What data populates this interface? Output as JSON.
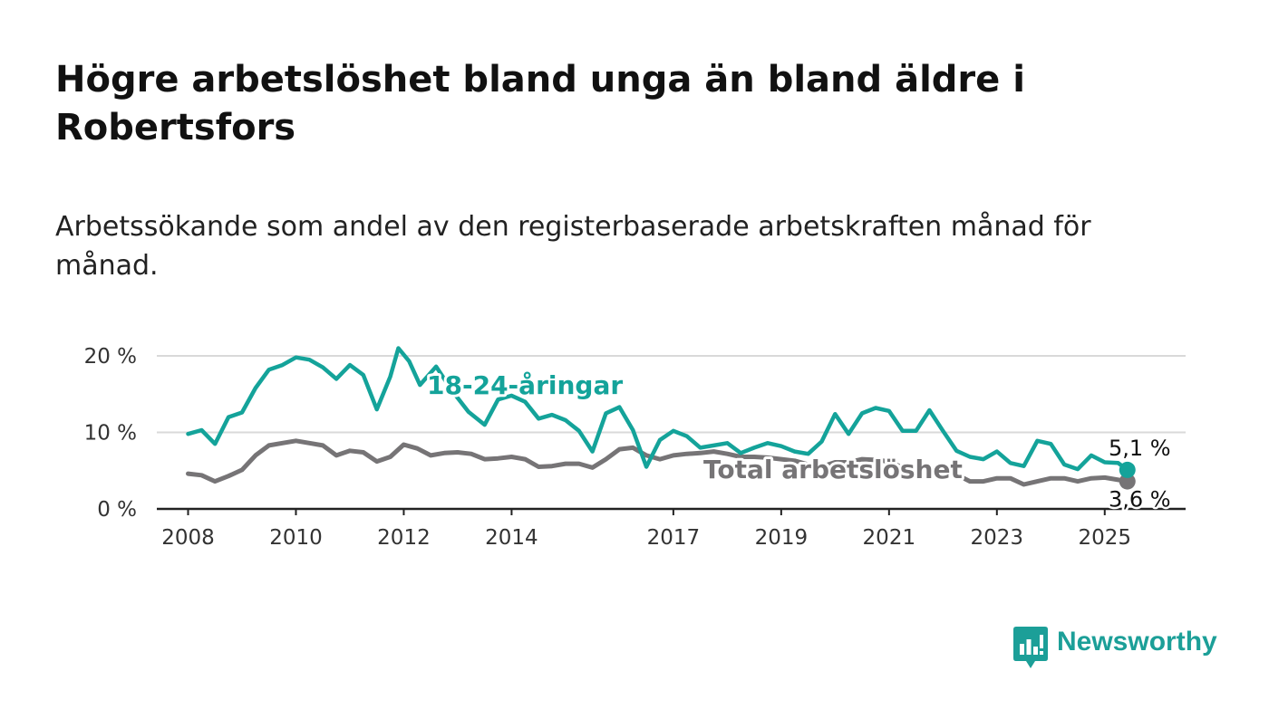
{
  "title": "Högre arbetslöshet bland unga än bland äldre i Robertsfors",
  "subtitle": "Arbetssökande som andel av den registerbaserade arbetskraften månad för månad.",
  "brand": {
    "name": "Newsworthy",
    "color": "#1c9f98"
  },
  "colors": {
    "youth": "#14a39a",
    "total": "#767476"
  },
  "chart_data": {
    "type": "line",
    "title": "Högre arbetslöshet bland unga än bland äldre i Robertsfors",
    "subtitle": "Arbetssökande som andel av den registerbaserade arbetskraften månad för månad.",
    "xlabel": "",
    "ylabel": "",
    "x_range": [
      2007.42,
      2026.5
    ],
    "ylim": [
      0,
      22
    ],
    "grid": true,
    "legend": "direct labels on lines",
    "yticks": [
      {
        "value": 0,
        "label": "0 %"
      },
      {
        "value": 10,
        "label": "10 %"
      },
      {
        "value": 20,
        "label": "20 %"
      }
    ],
    "xticks": [
      {
        "value": 2008,
        "label": "2008"
      },
      {
        "value": 2010,
        "label": "2010"
      },
      {
        "value": 2012,
        "label": "2012"
      },
      {
        "value": 2014,
        "label": "2014"
      },
      {
        "value": 2017,
        "label": "2017"
      },
      {
        "value": 2019,
        "label": "2019"
      },
      {
        "value": 2021,
        "label": "2021"
      },
      {
        "value": 2023,
        "label": "2023"
      },
      {
        "value": 2025,
        "label": "2025"
      }
    ],
    "series": [
      {
        "name": "18-24-åringar",
        "color": "#14a39a",
        "end_label": "5,1 %",
        "points": [
          [
            2008.0,
            9.8
          ],
          [
            2008.25,
            10.3
          ],
          [
            2008.5,
            8.5
          ],
          [
            2008.75,
            12.0
          ],
          [
            2009.0,
            12.6
          ],
          [
            2009.25,
            15.8
          ],
          [
            2009.5,
            18.2
          ],
          [
            2009.75,
            18.8
          ],
          [
            2010.0,
            19.8
          ],
          [
            2010.25,
            19.5
          ],
          [
            2010.5,
            18.5
          ],
          [
            2010.75,
            17.0
          ],
          [
            2011.0,
            18.8
          ],
          [
            2011.25,
            17.5
          ],
          [
            2011.5,
            13.0
          ],
          [
            2011.75,
            17.3
          ],
          [
            2011.9,
            21.0
          ],
          [
            2012.1,
            19.3
          ],
          [
            2012.3,
            16.2
          ],
          [
            2012.6,
            18.6
          ],
          [
            2012.9,
            15.4
          ],
          [
            2013.2,
            12.7
          ],
          [
            2013.5,
            11.0
          ],
          [
            2013.75,
            14.3
          ],
          [
            2014.0,
            14.8
          ],
          [
            2014.25,
            14.0
          ],
          [
            2014.5,
            11.8
          ],
          [
            2014.75,
            12.3
          ],
          [
            2015.0,
            11.6
          ],
          [
            2015.25,
            10.2
          ],
          [
            2015.5,
            7.5
          ],
          [
            2015.75,
            12.5
          ],
          [
            2016.0,
            13.3
          ],
          [
            2016.25,
            10.3
          ],
          [
            2016.5,
            5.5
          ],
          [
            2016.75,
            9.0
          ],
          [
            2017.0,
            10.2
          ],
          [
            2017.25,
            9.5
          ],
          [
            2017.5,
            8.0
          ],
          [
            2017.75,
            8.3
          ],
          [
            2018.0,
            8.6
          ],
          [
            2018.25,
            7.3
          ],
          [
            2018.5,
            8.0
          ],
          [
            2018.75,
            8.6
          ],
          [
            2019.0,
            8.2
          ],
          [
            2019.25,
            7.5
          ],
          [
            2019.5,
            7.2
          ],
          [
            2019.75,
            8.8
          ],
          [
            2020.0,
            12.4
          ],
          [
            2020.25,
            9.8
          ],
          [
            2020.5,
            12.5
          ],
          [
            2020.75,
            13.2
          ],
          [
            2021.0,
            12.8
          ],
          [
            2021.25,
            10.2
          ],
          [
            2021.5,
            10.2
          ],
          [
            2021.75,
            12.9
          ],
          [
            2022.0,
            10.2
          ],
          [
            2022.25,
            7.6
          ],
          [
            2022.5,
            6.8
          ],
          [
            2022.75,
            6.5
          ],
          [
            2023.0,
            7.5
          ],
          [
            2023.25,
            6.0
          ],
          [
            2023.5,
            5.6
          ],
          [
            2023.75,
            8.9
          ],
          [
            2024.0,
            8.5
          ],
          [
            2024.25,
            5.8
          ],
          [
            2024.5,
            5.2
          ],
          [
            2024.75,
            7.0
          ],
          [
            2025.0,
            6.1
          ],
          [
            2025.25,
            6.0
          ],
          [
            2025.42,
            5.1
          ]
        ]
      },
      {
        "name": "Total arbetslöshet",
        "color": "#767476",
        "end_label": "3,6 %",
        "points": [
          [
            2008.0,
            4.6
          ],
          [
            2008.25,
            4.4
          ],
          [
            2008.5,
            3.6
          ],
          [
            2008.75,
            4.3
          ],
          [
            2009.0,
            5.1
          ],
          [
            2009.25,
            7.0
          ],
          [
            2009.5,
            8.3
          ],
          [
            2009.75,
            8.6
          ],
          [
            2010.0,
            8.9
          ],
          [
            2010.25,
            8.6
          ],
          [
            2010.5,
            8.3
          ],
          [
            2010.75,
            7.0
          ],
          [
            2011.0,
            7.6
          ],
          [
            2011.25,
            7.4
          ],
          [
            2011.5,
            6.2
          ],
          [
            2011.75,
            6.8
          ],
          [
            2012.0,
            8.4
          ],
          [
            2012.25,
            7.9
          ],
          [
            2012.5,
            7.0
          ],
          [
            2012.75,
            7.3
          ],
          [
            2013.0,
            7.4
          ],
          [
            2013.25,
            7.2
          ],
          [
            2013.5,
            6.5
          ],
          [
            2013.75,
            6.6
          ],
          [
            2014.0,
            6.8
          ],
          [
            2014.25,
            6.5
          ],
          [
            2014.5,
            5.5
          ],
          [
            2014.75,
            5.6
          ],
          [
            2015.0,
            5.9
          ],
          [
            2015.25,
            5.9
          ],
          [
            2015.5,
            5.4
          ],
          [
            2015.75,
            6.5
          ],
          [
            2016.0,
            7.8
          ],
          [
            2016.25,
            8.0
          ],
          [
            2016.5,
            7.0
          ],
          [
            2016.75,
            6.5
          ],
          [
            2017.0,
            7.0
          ],
          [
            2017.25,
            7.2
          ],
          [
            2017.5,
            7.3
          ],
          [
            2017.75,
            7.5
          ],
          [
            2018.0,
            7.2
          ],
          [
            2018.25,
            6.8
          ],
          [
            2018.5,
            6.8
          ],
          [
            2018.75,
            6.7
          ],
          [
            2019.0,
            6.5
          ],
          [
            2019.25,
            6.3
          ],
          [
            2019.5,
            5.8
          ],
          [
            2019.75,
            5.5
          ],
          [
            2020.0,
            6.1
          ],
          [
            2020.25,
            6.1
          ],
          [
            2020.5,
            6.5
          ],
          [
            2020.75,
            6.4
          ],
          [
            2021.0,
            6.2
          ],
          [
            2021.25,
            5.4
          ],
          [
            2021.5,
            5.2
          ],
          [
            2021.75,
            5.3
          ],
          [
            2022.0,
            5.0
          ],
          [
            2022.25,
            4.5
          ],
          [
            2022.5,
            3.6
          ],
          [
            2022.75,
            3.6
          ],
          [
            2023.0,
            4.0
          ],
          [
            2023.25,
            4.0
          ],
          [
            2023.5,
            3.2
          ],
          [
            2023.75,
            3.6
          ],
          [
            2024.0,
            4.0
          ],
          [
            2024.25,
            4.0
          ],
          [
            2024.5,
            3.6
          ],
          [
            2024.75,
            4.0
          ],
          [
            2025.0,
            4.1
          ],
          [
            2025.25,
            3.8
          ],
          [
            2025.42,
            3.6
          ]
        ]
      }
    ]
  }
}
